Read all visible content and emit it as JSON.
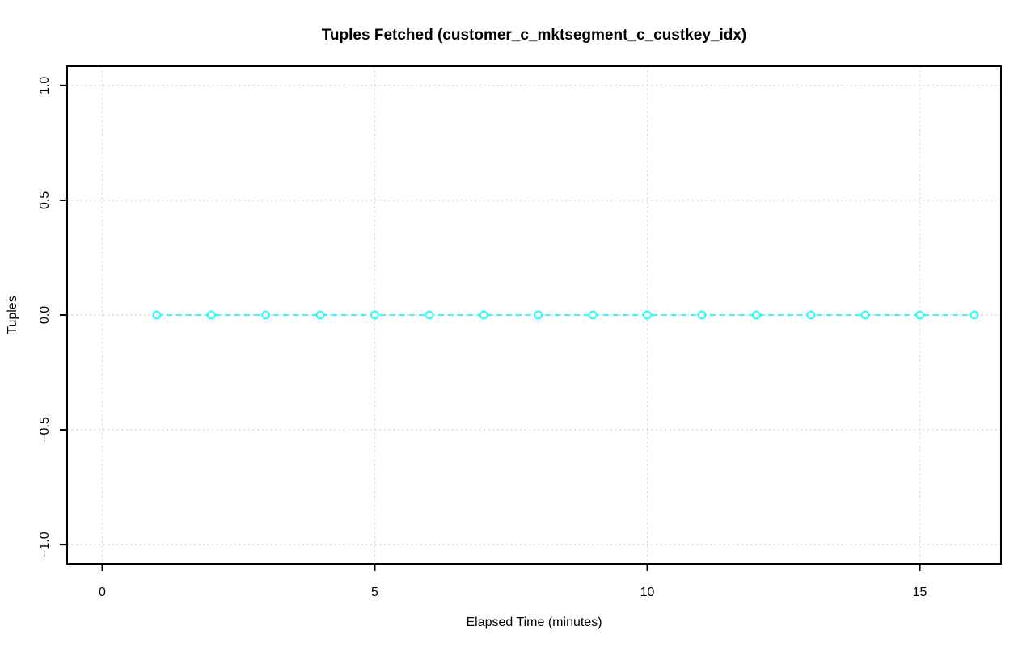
{
  "chart_data": {
    "type": "line",
    "title": "Tuples Fetched (customer_c_mktsegment_c_custkey_idx)",
    "xlabel": "Elapsed Time (minutes)",
    "ylabel": "Tuples",
    "x": [
      1,
      2,
      3,
      4,
      5,
      6,
      7,
      8,
      9,
      10,
      11,
      12,
      13,
      14,
      15,
      16
    ],
    "y": [
      0,
      0,
      0,
      0,
      0,
      0,
      0,
      0,
      0,
      0,
      0,
      0,
      0,
      0,
      0,
      0
    ],
    "series_name": "Tuples",
    "xlim": [
      -0.645,
      16.49
    ],
    "ylim": [
      -1.084,
      1.084
    ],
    "xticks": {
      "values": [
        0,
        5,
        10,
        15
      ],
      "labels": [
        "0",
        "5",
        "10",
        "15"
      ]
    },
    "yticks": {
      "values": [
        -1.0,
        -0.5,
        0.0,
        0.5,
        1.0
      ],
      "labels": [
        "−1.0",
        "−0.5",
        "0.0",
        "0.5",
        "1.0"
      ]
    },
    "grid": true,
    "grid_style": "dotted",
    "line_style": "dashed",
    "marker": "open-circle",
    "legend": "none",
    "colors": {
      "series": "#00FFFF",
      "grid": "#D3D3D3",
      "axis": "#000000",
      "text": "#000000",
      "background": "#FFFFFF"
    }
  }
}
